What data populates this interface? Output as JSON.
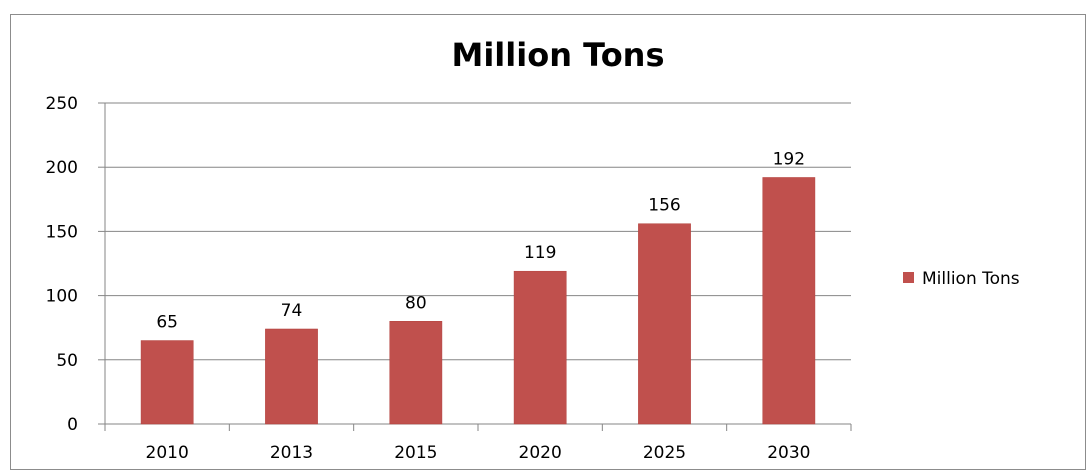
{
  "chart_data": {
    "type": "bar",
    "title": "Million Tons",
    "categories": [
      "2010",
      "2013",
      "2015",
      "2020",
      "2025",
      "2030"
    ],
    "series": [
      {
        "name": "Million Tons",
        "values": [
          65,
          74,
          80,
          119,
          156,
          192
        ],
        "color": "#c0504d"
      }
    ],
    "data_labels": [
      "65",
      "74",
      "80",
      "119",
      "156",
      "192"
    ],
    "y_ticks": [
      "0",
      "50",
      "100",
      "150",
      "200",
      "250"
    ],
    "ylim": [
      0,
      250
    ],
    "xlabel": "",
    "ylabel": "",
    "grid": true,
    "legend_position": "right"
  }
}
